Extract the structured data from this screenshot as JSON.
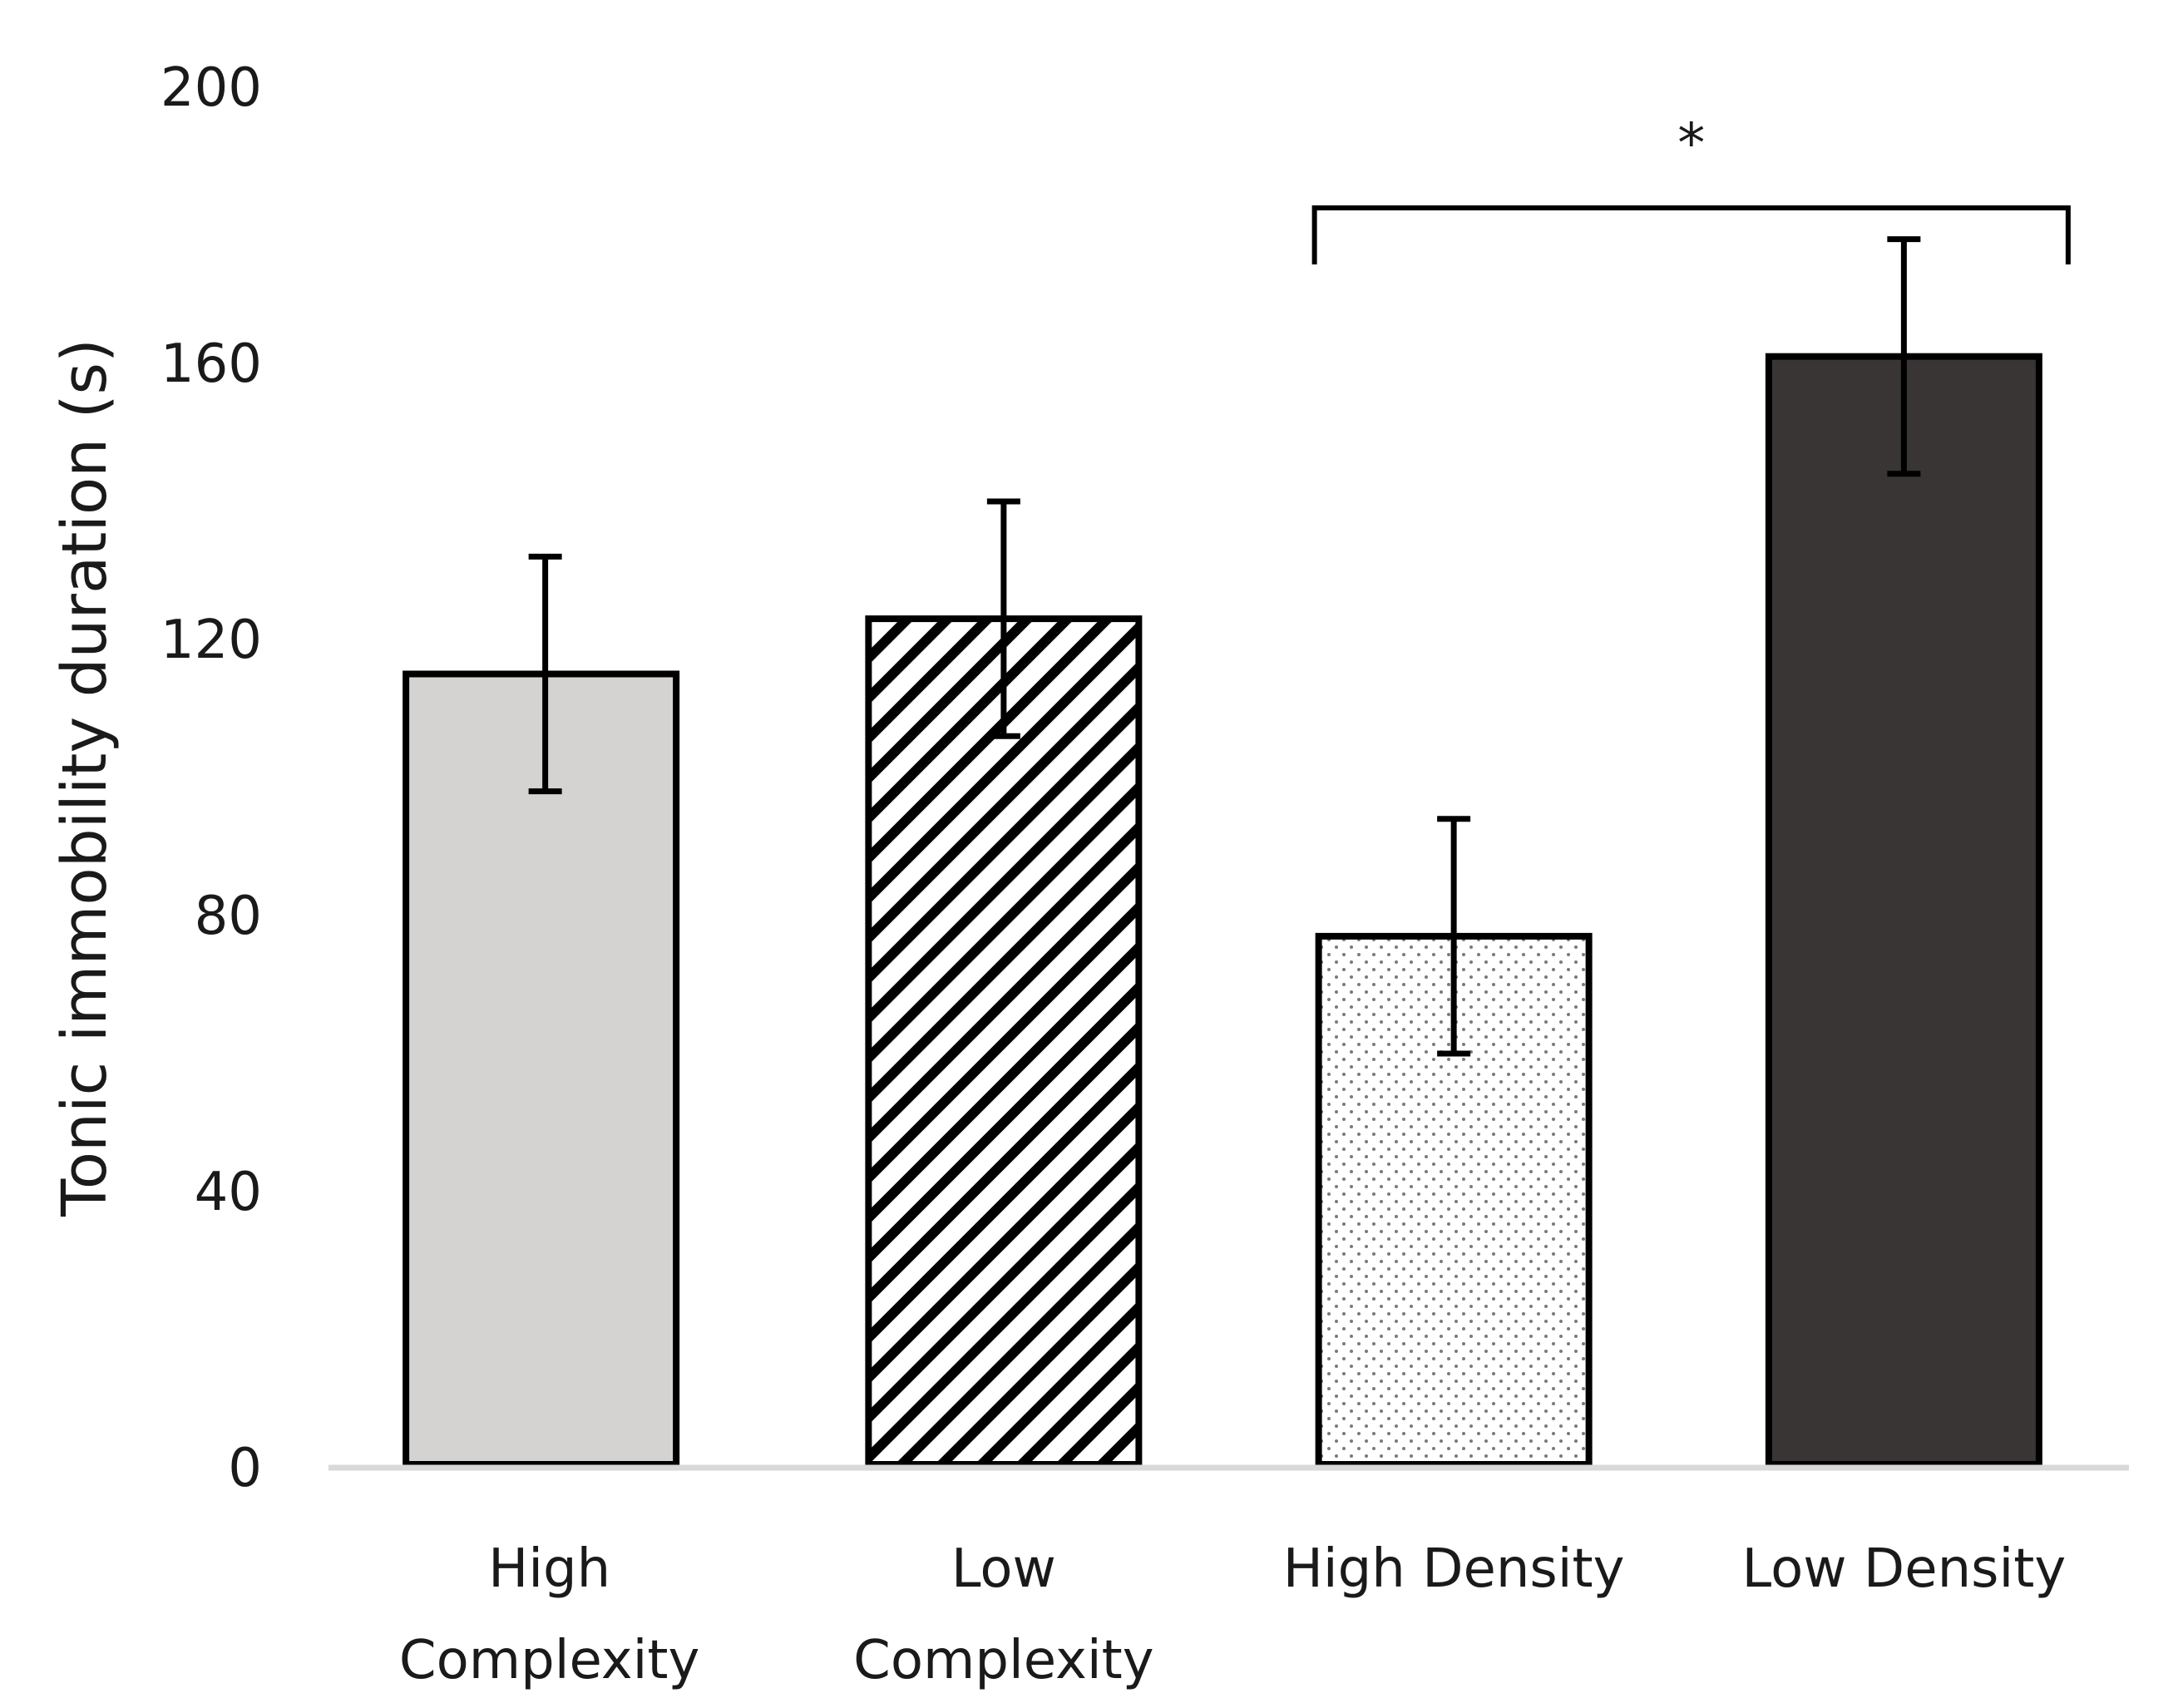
{
  "chart_data": {
    "type": "bar",
    "title": "",
    "xlabel": "",
    "ylabel": "Tonic immobility duration (s)",
    "ylim": [
      0,
      200
    ],
    "yticks": [
      "0",
      "40",
      "80",
      "120",
      "160",
      "200"
    ],
    "grid": false,
    "categories": [
      {
        "lines": [
          "High",
          "Complexity"
        ],
        "value": 115,
        "error": 17,
        "fill": "solid-light-grey"
      },
      {
        "lines": [
          "Low",
          "Complexity"
        ],
        "value": 123,
        "error": 17,
        "fill": "diagonal-hatch"
      },
      {
        "lines": [
          "High Density"
        ],
        "value": 77,
        "error": 17,
        "fill": "dotted"
      },
      {
        "lines": [
          "Low Density"
        ],
        "value": 161,
        "error": 17,
        "fill": "solid-dark"
      }
    ],
    "annotations": [
      {
        "type": "significance-bracket",
        "from": 2,
        "to": 3,
        "label": "*"
      }
    ],
    "colors": {
      "light_grey": "#d4d3d1",
      "dark": "#383534",
      "outline": "#000000",
      "axis": "#d9d9d9"
    }
  }
}
